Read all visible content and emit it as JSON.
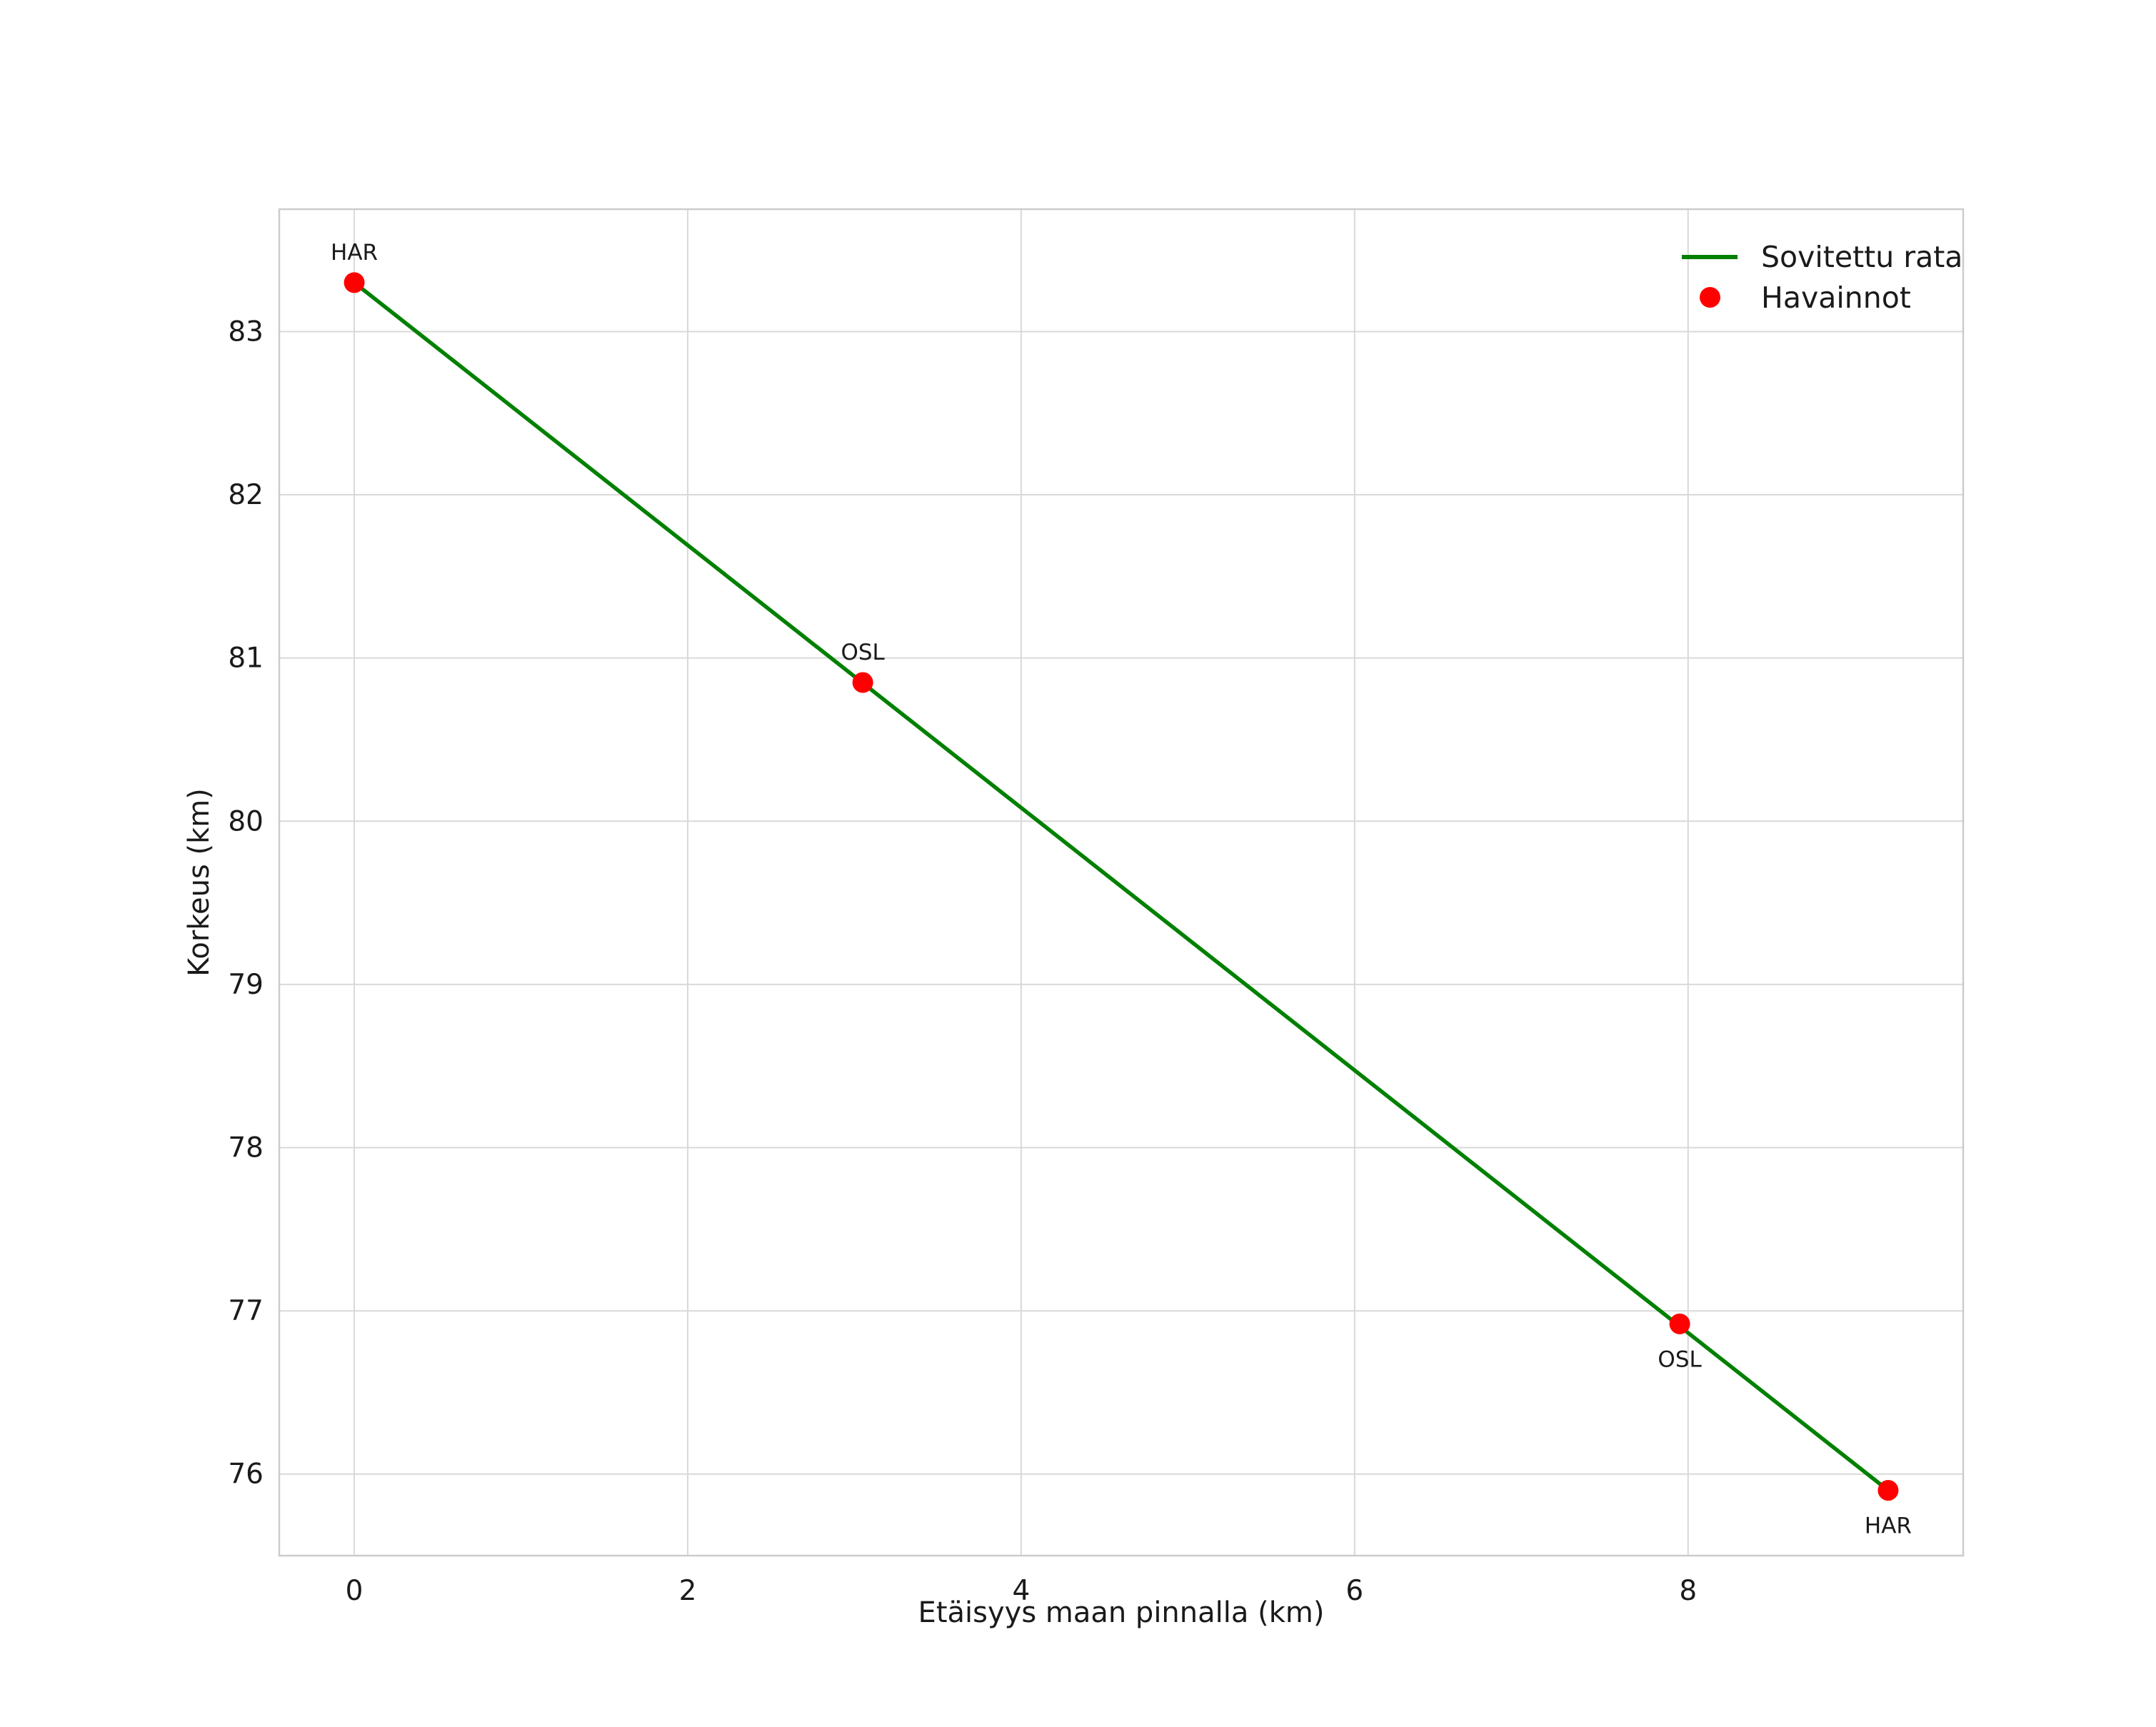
{
  "chart_data": {
    "type": "line",
    "title": "",
    "xlabel": "Etäisyys maan pinnalla (km)",
    "ylabel": "Korkeus (km)",
    "xlim": [
      -0.45,
      9.65
    ],
    "ylim": [
      75.5,
      83.75
    ],
    "x_ticks": [
      0,
      2,
      4,
      6,
      8
    ],
    "y_ticks": [
      76,
      77,
      78,
      79,
      80,
      81,
      82,
      83
    ],
    "grid": true,
    "legend": {
      "position": "upper right",
      "entries": [
        {
          "label": "Sovitettu rata",
          "type": "line",
          "color": "#008000"
        },
        {
          "label": "Havainnot",
          "type": "point",
          "color": "#ff0000"
        }
      ]
    },
    "series": [
      {
        "name": "Sovitettu rata",
        "type": "line",
        "color": "#008000",
        "points": [
          [
            0.0,
            83.3
          ],
          [
            9.2,
            75.9
          ]
        ]
      },
      {
        "name": "Havainnot",
        "type": "scatter",
        "color": "#ff0000",
        "points": [
          [
            0.0,
            83.3
          ],
          [
            3.05,
            80.85
          ],
          [
            7.95,
            76.92
          ],
          [
            9.2,
            75.9
          ]
        ],
        "annotations": [
          {
            "text": "HAR",
            "x": 0.0,
            "y": 83.3,
            "placement": "above"
          },
          {
            "text": "OSL",
            "x": 3.05,
            "y": 80.85,
            "placement": "above"
          },
          {
            "text": "OSL",
            "x": 7.95,
            "y": 76.92,
            "placement": "below"
          },
          {
            "text": "HAR",
            "x": 9.2,
            "y": 75.9,
            "placement": "below"
          }
        ]
      }
    ],
    "colors": {
      "grid": "#d9d9d9",
      "frame": "#cccccc",
      "text": "#1a1a1a",
      "background": "#ffffff"
    }
  }
}
